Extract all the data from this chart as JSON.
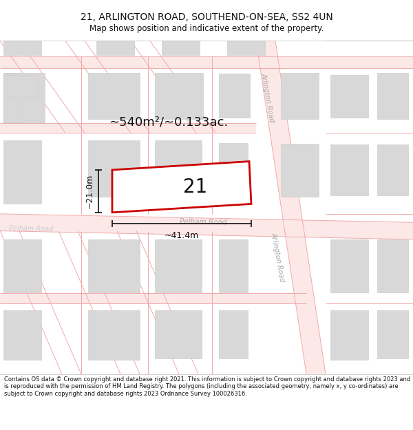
{
  "title_line1": "21, ARLINGTON ROAD, SOUTHEND-ON-SEA, SS2 4UN",
  "title_line2": "Map shows position and indicative extent of the property.",
  "footer_text": "Contains OS data © Crown copyright and database right 2021. This information is subject to Crown copyright and database rights 2023 and is reproduced with the permission of HM Land Registry. The polygons (including the associated geometry, namely x, y co-ordinates) are subject to Crown copyright and database rights 2023 Ordnance Survey 100026316.",
  "bg_color": "#ffffff",
  "map_bg": "#f9f9f9",
  "road_line_color": "#f0aaaa",
  "building_fill": "#d8d8d8",
  "building_edge": "#c8c8c8",
  "property_fill": "#ffffff",
  "property_edge": "#cc0000",
  "property_label": "21",
  "area_text": "~540m²/~0.133ac.",
  "dim_width": "~41.4m",
  "dim_height": "~21.0m",
  "road_label_arlington": "Arlington Road",
  "road_label_pelham": "Pelham Road",
  "road_label_pelham_left": "Pelham Road",
  "dim_color": "#111111",
  "label_color": "#333333",
  "road_label_color": "#aaaaaa",
  "title_color": "#111111",
  "footer_color": "#111111"
}
